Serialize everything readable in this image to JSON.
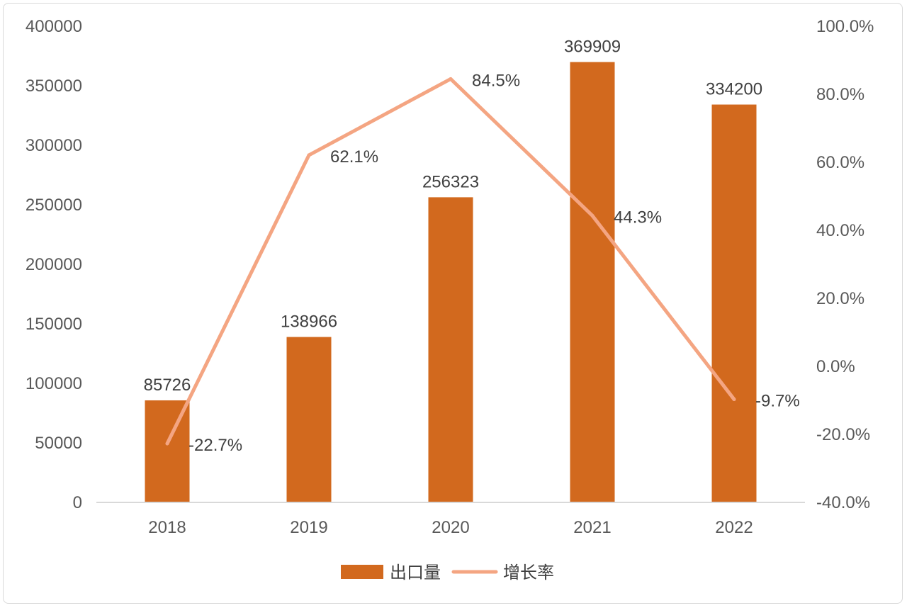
{
  "chart_data": {
    "type": "bar",
    "categories": [
      "2018",
      "2019",
      "2020",
      "2021",
      "2022"
    ],
    "series": [
      {
        "name": "出口量",
        "type": "bar",
        "axis": "left",
        "color": "#D2691E",
        "values": [
          85726,
          138966,
          256323,
          369909,
          334200
        ],
        "labels": [
          "85726",
          "138966",
          "256323",
          "369909",
          "334200"
        ]
      },
      {
        "name": "增长率",
        "type": "line",
        "axis": "right",
        "color": "#F4A582",
        "values": [
          -22.7,
          62.1,
          84.5,
          44.3,
          -9.7
        ],
        "labels": [
          "-22.7%",
          "62.1%",
          "84.5%",
          "44.3%",
          "-9.7%"
        ]
      }
    ],
    "y_left": {
      "min": 0,
      "max": 400000,
      "ticks": [
        "0",
        "50000",
        "100000",
        "150000",
        "200000",
        "250000",
        "300000",
        "350000",
        "400000"
      ]
    },
    "y_right": {
      "min": -40,
      "max": 100,
      "ticks": [
        "-40.0%",
        "-20.0%",
        "0.0%",
        "20.0%",
        "40.0%",
        "60.0%",
        "80.0%",
        "100.0%"
      ]
    },
    "grid": false,
    "legend": "bottom-center",
    "title": "",
    "xlabel": "",
    "ylabel": ""
  }
}
